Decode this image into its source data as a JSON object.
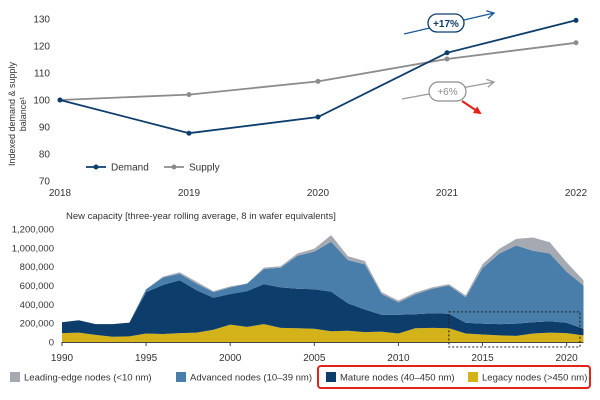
{
  "chart_data": [
    {
      "type": "line",
      "ylabel": "Indexed demand & supply balance¹",
      "ylabel_lines": [
        "Indexed demand & supply",
        "balance¹"
      ],
      "x": [
        "2018",
        "2019",
        "2020",
        "2021",
        "2022"
      ],
      "ylim": [
        70,
        130
      ],
      "yticks": [
        "70",
        "80",
        "90",
        "100",
        "110",
        "120",
        "130"
      ],
      "grid": false,
      "legend_position": "bottom-left",
      "series": [
        {
          "name": "Demand",
          "values": [
            100,
            87.7,
            93.7,
            117.5,
            129.5
          ],
          "color": "#0d3d6b"
        },
        {
          "name": "Supply",
          "values": [
            100,
            102.0,
            106.9,
            115.2,
            121.2
          ],
          "color": "#8c8c8c"
        }
      ],
      "annotations": [
        {
          "text": "+17%",
          "color": "#0d3d6b",
          "arrow_color": "#1a5a96",
          "series": "Demand"
        },
        {
          "text": "+6%",
          "color": "#8c8c8c",
          "arrow_color": "#9a9a9a",
          "series": "Supply"
        }
      ],
      "highlight_arrow_color": "#e2231a"
    },
    {
      "type": "area",
      "stacked": true,
      "title": "New capacity [three-year rolling average, 8 in wafer equivalents]",
      "x": [
        1990,
        1991,
        1992,
        1993,
        1994,
        1995,
        1996,
        1997,
        1998,
        1999,
        2000,
        2001,
        2002,
        2003,
        2004,
        2005,
        2006,
        2007,
        2008,
        2009,
        2010,
        2011,
        2012,
        2013,
        2014,
        2015,
        2016,
        2017,
        2018,
        2019,
        2020,
        2021
      ],
      "xticks": [
        "1990",
        "1995",
        "2000",
        "2005",
        "2010",
        "2015",
        "2020"
      ],
      "ylim": [
        0,
        1200000
      ],
      "yticks": [
        "0",
        "200,000",
        "400,000",
        "600,000",
        "800,000",
        "1,000,000",
        "1,200,000"
      ],
      "legend_position": "bottom",
      "series": [
        {
          "name": "Legacy nodes (>450 nm)",
          "color": "#d4b31a",
          "values": [
            95000,
            100000,
            75000,
            55000,
            60000,
            90000,
            85000,
            95000,
            100000,
            130000,
            185000,
            160000,
            190000,
            150000,
            145000,
            140000,
            115000,
            120000,
            105000,
            110000,
            90000,
            145000,
            150000,
            145000,
            90000,
            80000,
            70000,
            65000,
            90000,
            100000,
            95000,
            70000
          ]
        },
        {
          "name": "Mature nodes (40–450 nm)",
          "color": "#0d3d6b",
          "values": [
            115000,
            130000,
            115000,
            135000,
            145000,
            440000,
            520000,
            560000,
            450000,
            340000,
            325000,
            380000,
            425000,
            430000,
            420000,
            420000,
            420000,
            290000,
            240000,
            180000,
            200000,
            150000,
            155000,
            155000,
            115000,
            115000,
            120000,
            130000,
            120000,
            120000,
            110000,
            70000
          ]
        },
        {
          "name": "Advanced nodes (10–39 nm)",
          "color": "#4a7eaa",
          "values": [
            0,
            0,
            0,
            0,
            0,
            30000,
            80000,
            70000,
            70000,
            60000,
            70000,
            80000,
            160000,
            210000,
            350000,
            400000,
            530000,
            460000,
            480000,
            220000,
            130000,
            210000,
            260000,
            300000,
            270000,
            590000,
            750000,
            830000,
            760000,
            720000,
            540000,
            460000
          ]
        },
        {
          "name": "Leading-edge nodes (<10 nm)",
          "color": "#a5aab2",
          "values": [
            0,
            0,
            0,
            0,
            0,
            0,
            10000,
            15000,
            20000,
            10000,
            10000,
            0,
            15000,
            15000,
            25000,
            30000,
            70000,
            40000,
            35000,
            20000,
            20000,
            20000,
            15000,
            15000,
            20000,
            40000,
            50000,
            70000,
            140000,
            120000,
            100000,
            55000
          ]
        }
      ],
      "legend_order": [
        "Leading-edge nodes (<10 nm)",
        "Advanced nodes (10–39 nm)",
        "Mature nodes (40–450 nm)",
        "Legacy nodes (>450 nm)"
      ],
      "highlight_box": {
        "x_from": 2013,
        "x_to": 2021,
        "y_from": 0,
        "y_to": 320000
      },
      "legend_highlight_color": "#e2231a"
    }
  ]
}
